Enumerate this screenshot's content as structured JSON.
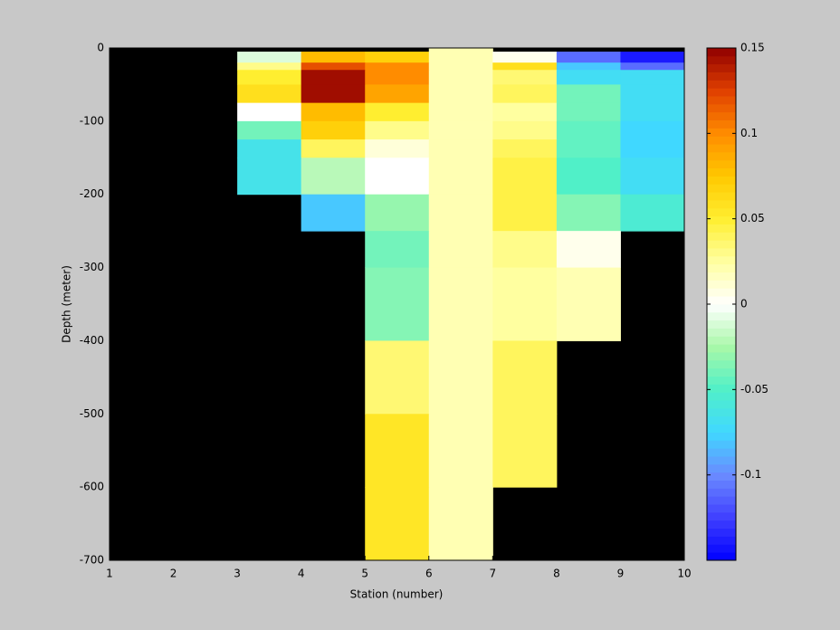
{
  "chart_data": {
    "type": "heatmap",
    "xlabel": "Station (number)",
    "ylabel": "Depth (meter)",
    "x_edges": [
      1,
      2,
      3,
      4,
      5,
      6,
      7,
      8,
      9,
      10
    ],
    "y_edges": [
      0,
      -5,
      -20,
      -30,
      -50,
      -75,
      -100,
      -125,
      -150,
      -200,
      -250,
      -300,
      -400,
      -500,
      -600,
      -700
    ],
    "values": [
      [
        null,
        null,
        null,
        null,
        null,
        0.02,
        null,
        null,
        null
      ],
      [
        null,
        null,
        -0.01,
        0.08,
        0.07,
        0.02,
        0.005,
        -0.11,
        -0.14
      ],
      [
        null,
        null,
        0.03,
        0.12,
        0.1,
        0.02,
        0.06,
        -0.08,
        -0.11
      ],
      [
        null,
        null,
        0.05,
        0.145,
        0.1,
        0.02,
        0.035,
        -0.07,
        -0.07
      ],
      [
        null,
        null,
        0.06,
        0.145,
        0.09,
        0.02,
        0.04,
        -0.04,
        -0.07
      ],
      [
        null,
        null,
        0.0,
        0.08,
        0.05,
        0.02,
        0.025,
        -0.04,
        -0.07
      ],
      [
        null,
        null,
        -0.04,
        0.07,
        0.03,
        0.02,
        0.03,
        -0.045,
        -0.075
      ],
      [
        null,
        null,
        -0.065,
        0.04,
        0.01,
        0.02,
        0.04,
        -0.045,
        -0.075
      ],
      [
        null,
        null,
        -0.065,
        -0.02,
        0.0,
        0.02,
        0.045,
        -0.05,
        -0.07
      ],
      [
        null,
        null,
        null,
        -0.08,
        -0.03,
        0.02,
        0.045,
        -0.035,
        -0.055
      ],
      [
        null,
        null,
        null,
        null,
        -0.04,
        0.02,
        0.03,
        0.005,
        null
      ],
      [
        null,
        null,
        null,
        null,
        -0.035,
        0.02,
        0.025,
        0.02,
        null
      ],
      [
        null,
        null,
        null,
        null,
        0.035,
        0.02,
        0.04,
        null,
        null
      ],
      [
        null,
        null,
        null,
        null,
        0.055,
        0.02,
        0.04,
        null,
        null
      ],
      [
        null,
        null,
        null,
        null,
        0.055,
        0.02,
        null,
        null,
        null
      ]
    ],
    "xlim": [
      1,
      10
    ],
    "xticks": [
      1,
      2,
      3,
      4,
      5,
      6,
      7,
      8,
      9,
      10
    ],
    "ylim": [
      -700,
      0
    ],
    "yticks": [
      0,
      -100,
      -200,
      -300,
      -400,
      -500,
      -600,
      -700
    ],
    "clim": [
      -0.15,
      0.15
    ],
    "cticks": [
      -0.1,
      -0.05,
      0,
      0.05,
      0.1,
      0.15
    ],
    "missing_color": "#000000",
    "colormap": [
      "#0000ff",
      "#4040ff",
      "#6a8aff",
      "#40d8ff",
      "#50f0c8",
      "#a8f8a8",
      "#ffffff",
      "#ffffa0",
      "#ffee30",
      "#ffc800",
      "#ff8c00",
      "#e04000",
      "#900000"
    ]
  }
}
